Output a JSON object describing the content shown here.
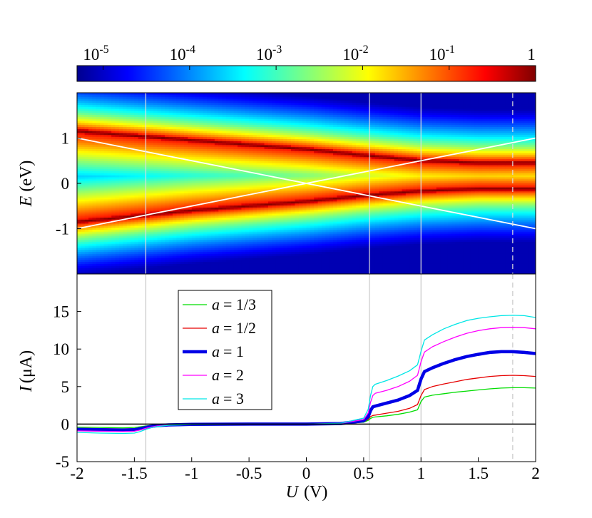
{
  "chart_data": [
    {
      "type": "heatmap",
      "colorbar": {
        "scale": "log",
        "range": [
          5e-06,
          1
        ],
        "tick_bases": [
          "10",
          "10",
          "10",
          "10",
          "10"
        ],
        "tick_exponents": [
          "-5",
          "-4",
          "-3",
          "-2",
          "-1"
        ],
        "tick_values": [
          1e-05,
          0.0001,
          0.001,
          0.01,
          0.1
        ],
        "last_tick_label": "1",
        "last_tick_value": 1
      },
      "xlim": [
        -2,
        2
      ],
      "ylim": [
        -2,
        2
      ],
      "ylabel_var": "E",
      "ylabel_unit": "(eV)",
      "ytick_labels": [
        "1",
        "0",
        "-1"
      ],
      "ytick_values": [
        1,
        0,
        -1
      ],
      "bands": {
        "upper": {
          "x": [
            -2,
            -1,
            0,
            0.5,
            1,
            1.5,
            2
          ],
          "E": [
            1.15,
            0.95,
            0.75,
            0.62,
            0.5,
            0.45,
            0.45
          ]
        },
        "lower": {
          "x": [
            -2,
            -1,
            0,
            0.5,
            1,
            1.5,
            2
          ],
          "E": [
            -0.85,
            -0.6,
            -0.4,
            -0.27,
            -0.17,
            -0.12,
            -0.12
          ]
        }
      },
      "white_lines": [
        {
          "x": [
            -2,
            2
          ],
          "E": [
            1.0,
            -1.0
          ]
        },
        {
          "x": [
            -2,
            2
          ],
          "E": [
            -1.0,
            1.0
          ]
        }
      ],
      "vertical_markers": [
        -1.4,
        0.55,
        1.0
      ],
      "dashed_marker": 1.8
    },
    {
      "type": "line",
      "xlim": [
        -2,
        2
      ],
      "ylim": [
        -5,
        20
      ],
      "xlabel_var": "U",
      "xlabel_unit": "(V)",
      "ylabel_var": "I",
      "ylabel_unit": "(μA)",
      "xtick_labels": [
        "-2",
        "-1.5",
        "-1",
        "-0.5",
        "0",
        "0.5",
        "1",
        "1.5",
        "2"
      ],
      "xtick_values": [
        -2,
        -1.5,
        -1,
        -0.5,
        0,
        0.5,
        1,
        1.5,
        2
      ],
      "ytick_labels": [
        "15",
        "10",
        "5",
        "0",
        "-5"
      ],
      "ytick_values": [
        15,
        10,
        5,
        0,
        -5
      ],
      "legend_position": "upper-left",
      "x": [
        -2,
        -1.8,
        -1.6,
        -1.5,
        -1.45,
        -1.4,
        -1.35,
        -1.3,
        -1.2,
        -1,
        -0.5,
        0,
        0.3,
        0.5,
        0.54,
        0.56,
        0.58,
        0.6,
        0.7,
        0.8,
        0.9,
        0.97,
        1.0,
        1.03,
        1.1,
        1.2,
        1.3,
        1.4,
        1.5,
        1.6,
        1.7,
        1.8,
        1.9,
        2.0
      ],
      "series": [
        {
          "name": "a = 1/3",
          "var": "a",
          "rhs": "= 1/3",
          "color": "#00dd00",
          "width": 1.3,
          "values": [
            -0.4,
            -0.45,
            -0.5,
            -0.45,
            -0.35,
            -0.25,
            -0.15,
            -0.1,
            -0.05,
            -0.02,
            0,
            0,
            0.05,
            0.25,
            0.5,
            0.75,
            0.9,
            0.95,
            1.1,
            1.3,
            1.6,
            1.9,
            3.0,
            3.6,
            3.85,
            4.05,
            4.25,
            4.4,
            4.55,
            4.7,
            4.8,
            4.85,
            4.85,
            4.8
          ]
        },
        {
          "name": "a = 1/2",
          "var": "a",
          "rhs": "= 1/2",
          "color": "#e60000",
          "width": 1.3,
          "values": [
            -0.55,
            -0.6,
            -0.65,
            -0.6,
            -0.5,
            -0.35,
            -0.22,
            -0.15,
            -0.08,
            -0.03,
            0,
            0,
            0.05,
            0.3,
            0.65,
            1.0,
            1.15,
            1.2,
            1.45,
            1.7,
            2.1,
            2.6,
            3.8,
            4.6,
            5.0,
            5.35,
            5.65,
            5.95,
            6.15,
            6.35,
            6.45,
            6.5,
            6.45,
            6.35
          ]
        },
        {
          "name": "a = 1",
          "var": "a",
          "rhs": "= 1",
          "color": "#0000e6",
          "width": 4.5,
          "values": [
            -0.7,
            -0.75,
            -0.8,
            -0.75,
            -0.62,
            -0.45,
            -0.3,
            -0.2,
            -0.1,
            -0.04,
            0,
            0,
            0.08,
            0.45,
            1.0,
            1.8,
            2.3,
            2.4,
            2.8,
            3.2,
            3.8,
            4.5,
            6.0,
            7.0,
            7.5,
            8.1,
            8.6,
            9.0,
            9.3,
            9.55,
            9.65,
            9.65,
            9.55,
            9.4
          ]
        },
        {
          "name": "a = 2",
          "var": "a",
          "rhs": "= 2",
          "color": "#ff00ff",
          "width": 1.3,
          "values": [
            -0.9,
            -0.95,
            -1.0,
            -0.95,
            -0.8,
            -0.55,
            -0.38,
            -0.25,
            -0.12,
            -0.05,
            0,
            0,
            0.1,
            0.6,
            1.5,
            2.9,
            3.8,
            4.1,
            4.5,
            5.0,
            5.7,
            6.5,
            8.3,
            9.6,
            10.3,
            11.0,
            11.6,
            12.1,
            12.45,
            12.7,
            12.85,
            12.9,
            12.85,
            12.7
          ]
        },
        {
          "name": "a = 3",
          "var": "a",
          "rhs": "= 3",
          "color": "#00e6e6",
          "width": 1.3,
          "values": [
            -1.1,
            -1.2,
            -1.25,
            -1.2,
            -1.0,
            -0.7,
            -0.48,
            -0.32,
            -0.15,
            -0.06,
            0,
            0,
            0.12,
            0.8,
            2.0,
            3.8,
            5.0,
            5.3,
            5.8,
            6.4,
            7.1,
            7.9,
            9.7,
            11.2,
            11.9,
            12.7,
            13.3,
            13.8,
            14.1,
            14.3,
            14.45,
            14.5,
            14.45,
            14.2
          ]
        }
      ],
      "zero_line": true,
      "vertical_markers": [
        -1.4,
        0.55,
        1.0
      ],
      "dashed_marker": 1.8
    }
  ]
}
